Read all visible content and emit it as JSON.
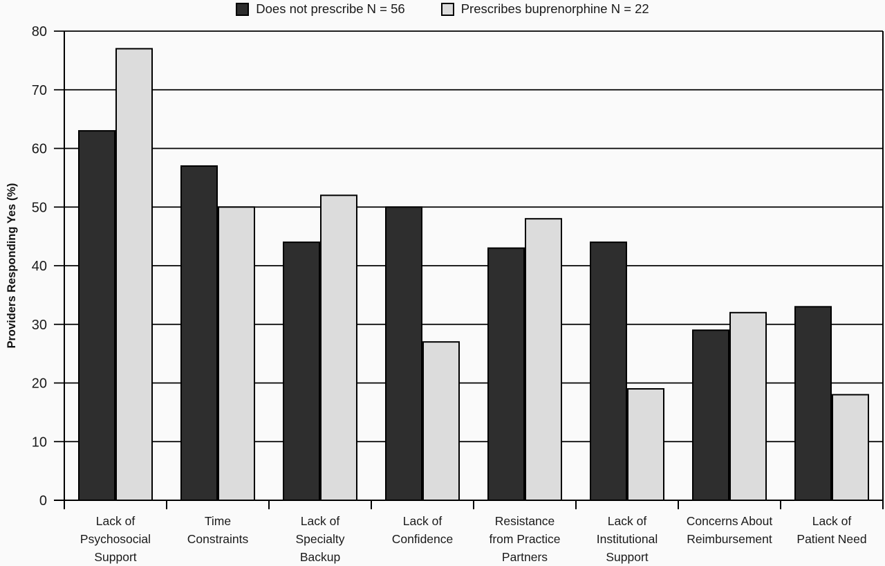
{
  "chart_data": {
    "type": "bar",
    "title": "",
    "xlabel": "",
    "ylabel": "Providers Responding Yes (%)",
    "ylim": [
      0,
      80
    ],
    "y_ticks": [
      0,
      10,
      20,
      30,
      40,
      50,
      60,
      70,
      80
    ],
    "grid": "horizontal",
    "legend_position": "top-center",
    "categories": [
      "Lack of Psychosocial Support",
      "Time Constraints",
      "Lack of Specialty Backup",
      "Lack of Confidence",
      "Resistance from Practice Partners",
      "Lack of Institutional Support",
      "Concerns About Reimbursement",
      "Lack of Patient Need"
    ],
    "category_label_lines": [
      [
        "Lack of",
        "Psychosocial",
        "Support"
      ],
      [
        "Time",
        "Constraints"
      ],
      [
        "Lack of",
        "Specialty",
        "Backup"
      ],
      [
        "Lack of",
        "Confidence"
      ],
      [
        "Resistance",
        "from Practice",
        "Partners"
      ],
      [
        "Lack of",
        "Institutional",
        "Support"
      ],
      [
        "Concerns About",
        "Reimbursement"
      ],
      [
        "Lack of",
        "Patient Need"
      ]
    ],
    "series": [
      {
        "name": "Does not prescribe N = 56",
        "color": "#2e2e2e",
        "values": [
          63,
          57,
          44,
          50,
          43,
          44,
          29,
          33
        ]
      },
      {
        "name": "Prescribes buprenorphine N = 22",
        "color": "#dcdcdc",
        "values": [
          77,
          50,
          52,
          27,
          48,
          19,
          32,
          18
        ]
      }
    ],
    "colors": {
      "background": "#fafafa",
      "axis": "#000000",
      "text": "#111111"
    }
  }
}
